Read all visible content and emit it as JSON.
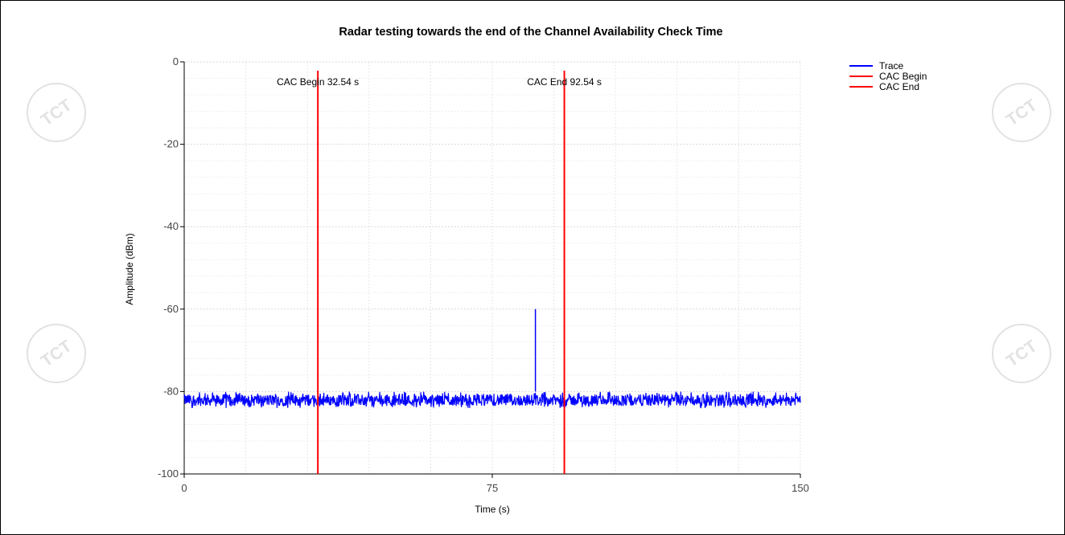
{
  "chart_data": {
    "type": "line",
    "title": "Radar testing towards the end of the Channel Availability Check Time",
    "xlabel": "Time (s)",
    "ylabel": "Amplitude (dBm)",
    "xlim": [
      0,
      150
    ],
    "ylim": [
      -100,
      0
    ],
    "x_ticks": [
      "0",
      "75",
      "150"
    ],
    "y_ticks": [
      "0",
      "-20",
      "-40",
      "-60",
      "-80",
      "-100"
    ],
    "grid": true,
    "legend_position": "top-right",
    "series": [
      {
        "name": "Trace",
        "color": "#0000ff",
        "noise_floor_range_dbm": [
          -84,
          -80
        ],
        "spike": {
          "x": 85.5,
          "y": -60
        }
      },
      {
        "name": "CAC Begin",
        "color": "#ff0000",
        "x": 32.54
      },
      {
        "name": "CAC End",
        "color": "#ff0000",
        "x": 92.54
      }
    ],
    "annotations": [
      {
        "text": "CAC Begin 32.54 s",
        "x": 32.54
      },
      {
        "text": "CAC End 92.54 s",
        "x": 92.54
      }
    ]
  },
  "watermark": {
    "text": "TCT",
    "color": "#e2e2e2"
  }
}
